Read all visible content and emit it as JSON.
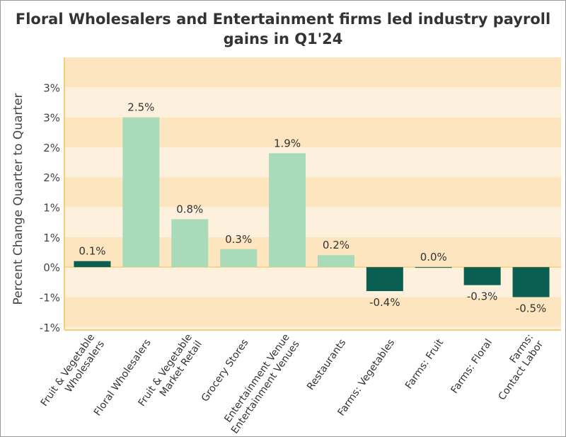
{
  "chart_data": {
    "type": "bar",
    "title": "Floral Wholesalers and Entertainment firms led industry payroll gains in Q1'24",
    "xlabel": "",
    "ylabel": "Percent Change Quarter to Quarter",
    "categories": [
      "Fruit & Vegetable Wholesalers",
      "Floral Wholesalers",
      "Fruit & Vegetable Market Retail",
      "Grocery Stores",
      "Entertainment Venues",
      "Restaurants",
      "Farms: Vegetables",
      "Farms: Fruit",
      "Farms: Floral",
      "Farms: Contact Labor"
    ],
    "values": [
      0.1,
      2.5,
      0.8,
      0.3,
      1.9,
      0.2,
      -0.4,
      0.0,
      -0.3,
      -0.5
    ],
    "data_labels": [
      "0.1%",
      "2.5%",
      "0.8%",
      "0.3%",
      "1.9%",
      "0.2%",
      "-0.4%",
      "0.0%",
      "-0.3%",
      "-0.5%"
    ],
    "highlighted": [
      true,
      false,
      false,
      false,
      false,
      false,
      true,
      true,
      true,
      true
    ],
    "yticks": [
      3.0,
      2.5,
      2.0,
      1.5,
      1.0,
      0.5,
      0,
      -0.5,
      -1.0
    ],
    "ytick_labels": [
      "3%",
      "3%",
      "2%",
      "2%",
      "1%",
      "1%",
      "0%",
      "-1%",
      "-1%"
    ],
    "ylim": [
      -1.05,
      3.5
    ],
    "grid": "alternating horizontal bands",
    "legend": "none",
    "colors": {
      "positive": "#a9dab9",
      "highlight": "#0b5e52",
      "band_dark": "#fde5bf",
      "band_light": "#fdf1de",
      "axis": "#f5cf7d"
    }
  }
}
